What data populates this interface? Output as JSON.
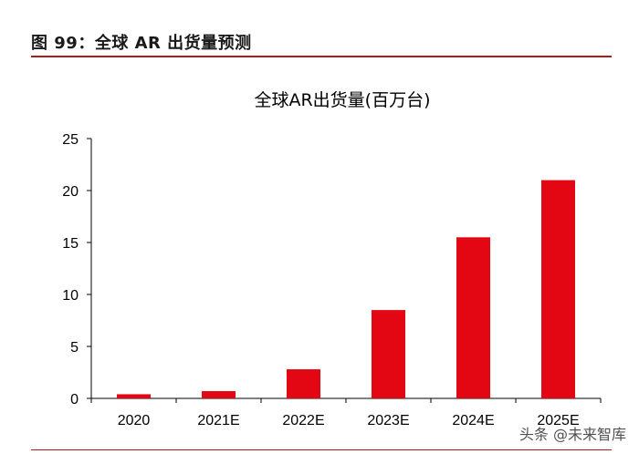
{
  "figure_title": "图 99：全球 AR 出货量预测",
  "watermark": "头条 @未来智库",
  "colors": {
    "bar": "#e30613",
    "rule": "#b31b1b",
    "axis": "#000000"
  },
  "chart_data": {
    "type": "bar",
    "title": "全球AR出货量(百万台)",
    "categories": [
      "2020",
      "2021E",
      "2022E",
      "2023E",
      "2024E",
      "2025E"
    ],
    "values": [
      0.4,
      0.7,
      2.8,
      8.5,
      15.5,
      21.0
    ],
    "yticks": [
      "0",
      "5",
      "10",
      "15",
      "20",
      "25"
    ],
    "ylim": [
      0,
      25
    ],
    "xlabel": "",
    "ylabel": "",
    "grid": false,
    "legend": "none"
  }
}
